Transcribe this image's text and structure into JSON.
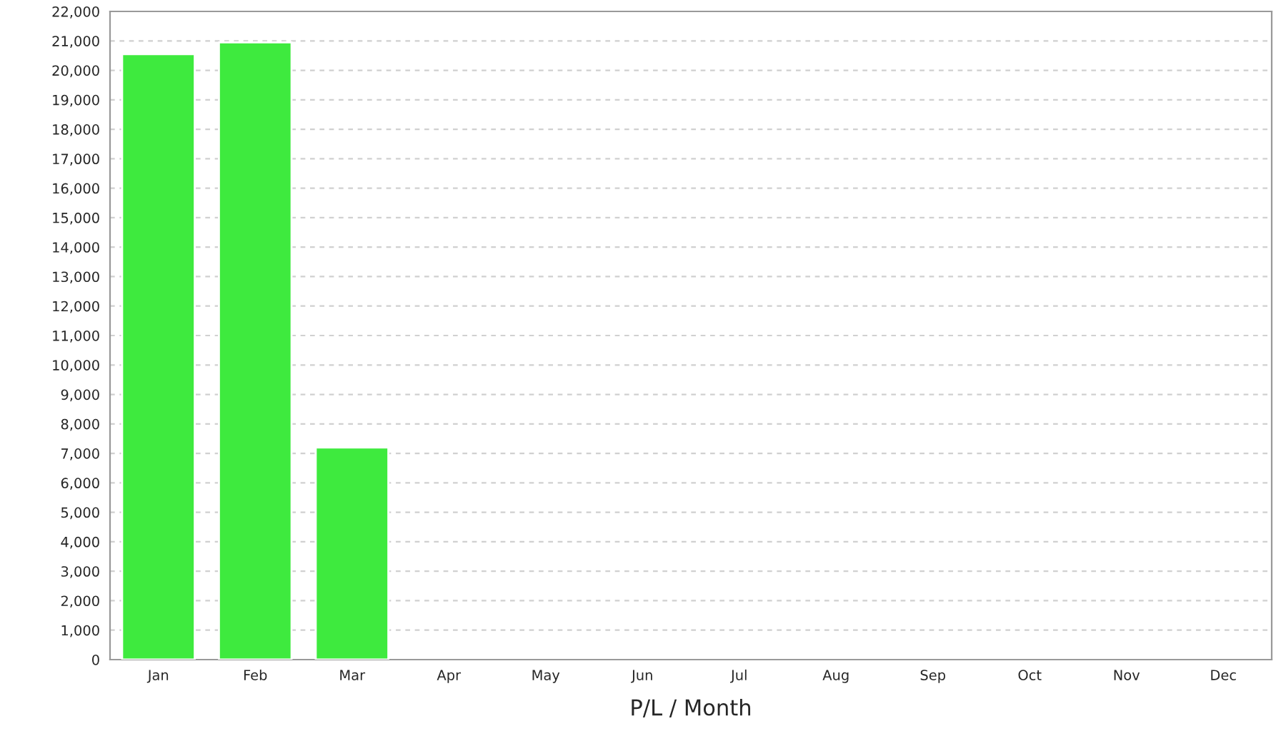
{
  "chart_data": {
    "type": "bar",
    "xlabel": "P/L / Month",
    "categories": [
      "Jan",
      "Feb",
      "Mar",
      "Apr",
      "May",
      "Jun",
      "Jul",
      "Aug",
      "Sep",
      "Oct",
      "Nov",
      "Dec"
    ],
    "values": [
      20550,
      20950,
      7200,
      null,
      null,
      null,
      null,
      null,
      null,
      null,
      null,
      null
    ],
    "color": "#3eea3e",
    "ylim": [
      0,
      22000
    ],
    "yticks": [
      0,
      {
        "value": 1000,
        "label": "1,000"
      },
      {
        "value": 2000,
        "label": "2,000"
      },
      {
        "value": 3000,
        "label": "3,000"
      },
      {
        "value": 4000,
        "label": "4,000"
      },
      {
        "value": 5000,
        "label": "5,000"
      },
      {
        "value": 6000,
        "label": "6,000"
      },
      {
        "value": 7000,
        "label": "7,000"
      },
      {
        "value": 8000,
        "label": "8,000"
      },
      {
        "value": 9000,
        "label": "9,000"
      },
      {
        "value": 10000,
        "label": "10,000"
      },
      {
        "value": 11000,
        "label": "11,000"
      },
      {
        "value": 12000,
        "label": "12,000"
      },
      {
        "value": 13000,
        "label": "13,000"
      },
      {
        "value": 14000,
        "label": "14,000"
      },
      {
        "value": 15000,
        "label": "15,000"
      },
      {
        "value": 16000,
        "label": "16,000"
      },
      {
        "value": 17000,
        "label": "17,000"
      },
      {
        "value": 18000,
        "label": "18,000"
      },
      {
        "value": 19000,
        "label": "19,000"
      },
      {
        "value": 20000,
        "label": "20,000"
      },
      {
        "value": 21000,
        "label": "21,000"
      },
      {
        "value": 22000,
        "label": "22,000"
      }
    ],
    "grid": "y",
    "legend": false
  }
}
